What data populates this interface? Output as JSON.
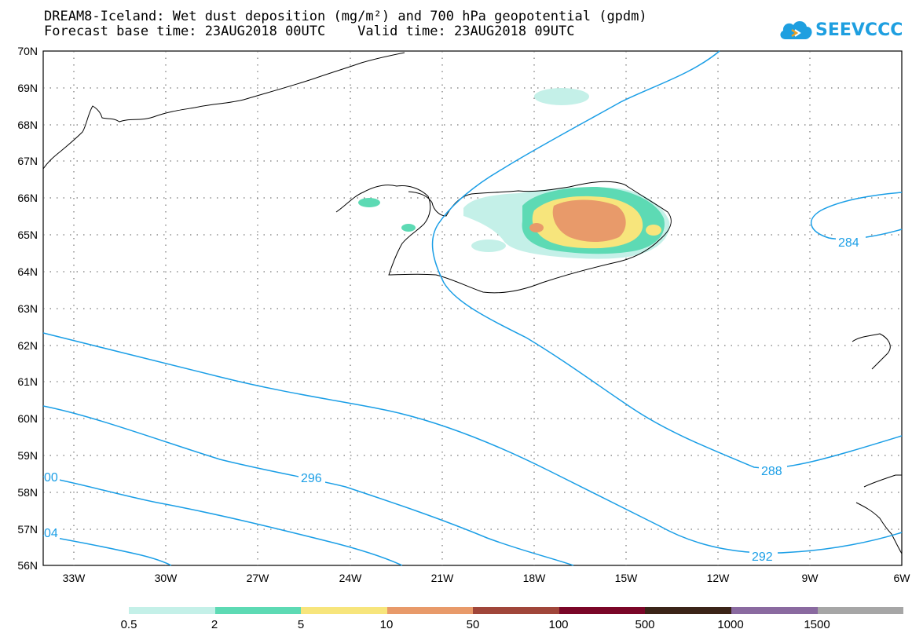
{
  "header": {
    "title_line1": "DREAM8-Iceland: Wet dust deposition (mg/m²) and 700 hPa geopotential (gpdm)",
    "title_line2": "Forecast base time: 23AUG2018 00UTC    Valid time: 23AUG2018 09UTC"
  },
  "logo": {
    "text": "SEEVCCC",
    "icon": "cloud-icon",
    "color": "#1e9fe0"
  },
  "map": {
    "lat_range": [
      56,
      70
    ],
    "lon_range": [
      -34.5,
      -6
    ],
    "lat_labels": [
      "70N",
      "69N",
      "68N",
      "67N",
      "66N",
      "65N",
      "64N",
      "63N",
      "62N",
      "61N",
      "60N",
      "59N",
      "58N",
      "57N",
      "56N"
    ],
    "lon_labels": [
      "33W",
      "30W",
      "27W",
      "24W",
      "21W",
      "18W",
      "15W",
      "12W",
      "9W",
      "6W"
    ],
    "contour_labels": [
      "296",
      "288",
      "292",
      "284",
      "00",
      "04"
    ],
    "contour_color": "#1a9ee6",
    "coastline_color": "#000000",
    "grid": true
  },
  "legend": {
    "labels": [
      "0.5",
      "2",
      "5",
      "10",
      "50",
      "100",
      "500",
      "1000",
      "1500"
    ],
    "colors": [
      "#c4f0e8",
      "#5ddab4",
      "#f7e57c",
      "#e89a6a",
      "#a0463a",
      "#7a0628",
      "#3b2418",
      "#8a6aa0",
      "#a6a6a6"
    ]
  }
}
